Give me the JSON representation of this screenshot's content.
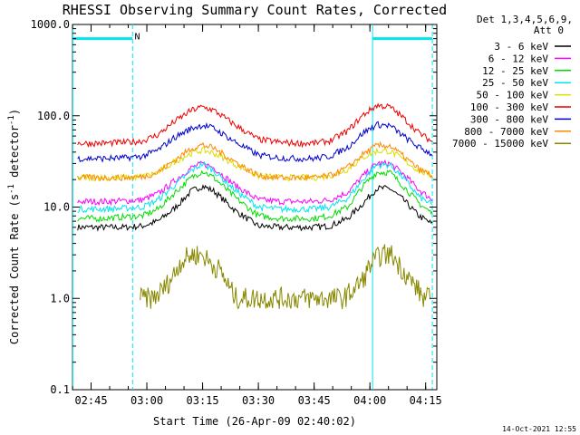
{
  "chart_data": {
    "type": "line",
    "title": "RHESSI Observing Summary Count Rates, Corrected",
    "xlabel": "Start Time (26-Apr-09 02:40:02)",
    "ylabel_parts": [
      "Corrected Count Rate (s",
      "-1",
      " detector",
      "-1",
      ")"
    ],
    "yscale": "log",
    "ylim": [
      0.1,
      1000
    ],
    "xlim": [
      2.6667,
      4.3
    ],
    "x_unit": "hours UT",
    "x_ticks": [
      {
        "label": "02:45",
        "value": 2.75
      },
      {
        "label": "03:00",
        "value": 3.0
      },
      {
        "label": "03:15",
        "value": 3.25
      },
      {
        "label": "03:30",
        "value": 3.5
      },
      {
        "label": "03:45",
        "value": 3.75
      },
      {
        "label": "04:00",
        "value": 4.0
      },
      {
        "label": "04:15",
        "value": 4.25
      }
    ],
    "y_ticks": [
      {
        "label": "0.1",
        "value": 0.1
      },
      {
        "label": "1.0",
        "value": 1
      },
      {
        "label": "10.0",
        "value": 10
      },
      {
        "label": "100.0",
        "value": 100
      },
      {
        "label": "1000.0",
        "value": 1000
      }
    ],
    "legend_header": [
      "Det 1,3,4,5,6,9,",
      "Att 0"
    ],
    "legend_position": "right, outside plot",
    "series": [
      {
        "name": "3 - 6 keV",
        "color": "#000000",
        "x": [
          2.69,
          2.8,
          2.9,
          2.98,
          3.05,
          3.12,
          3.2,
          3.25,
          3.3,
          3.4,
          3.5,
          3.6,
          3.68,
          3.75,
          3.82,
          3.9,
          3.97,
          4.03,
          4.09,
          4.15,
          4.22,
          4.28
        ],
        "y": [
          6,
          6,
          6,
          6.2,
          7,
          9.5,
          15,
          17,
          15,
          9,
          6.2,
          6,
          6,
          6,
          6.2,
          7.5,
          11,
          16,
          16,
          12,
          8,
          6.5
        ]
      },
      {
        "name": "6 - 12 keV",
        "color": "#ff00ff",
        "x": [
          2.69,
          2.8,
          2.9,
          2.98,
          3.05,
          3.12,
          3.2,
          3.25,
          3.3,
          3.4,
          3.5,
          3.6,
          3.68,
          3.75,
          3.82,
          3.9,
          3.97,
          4.03,
          4.09,
          4.15,
          4.22,
          4.28
        ],
        "y": [
          11.5,
          11.5,
          11.7,
          12,
          14,
          19,
          27,
          30,
          27,
          17,
          12,
          11.5,
          11.5,
          11.5,
          12,
          14.5,
          22,
          30,
          30,
          23,
          15.5,
          12
        ]
      },
      {
        "name": "12 - 25 keV",
        "color": "#00dd00",
        "x": [
          2.69,
          2.8,
          2.9,
          2.98,
          3.05,
          3.12,
          3.2,
          3.25,
          3.3,
          3.4,
          3.5,
          3.6,
          3.68,
          3.75,
          3.82,
          3.9,
          3.97,
          4.03,
          4.09,
          4.15,
          4.22,
          4.28
        ],
        "y": [
          7.5,
          7.5,
          7.8,
          8,
          9.5,
          14,
          21,
          25,
          21,
          12.5,
          8,
          7.5,
          7.5,
          7.5,
          8,
          10,
          17,
          24,
          24,
          17,
          11,
          8.5
        ]
      },
      {
        "name": "25 - 50 keV",
        "color": "#00e5ee",
        "x": [
          2.69,
          2.8,
          2.9,
          2.98,
          3.05,
          3.12,
          3.2,
          3.25,
          3.3,
          3.4,
          3.5,
          3.6,
          3.68,
          3.75,
          3.82,
          3.9,
          3.97,
          4.03,
          4.09,
          4.15,
          4.22,
          4.28
        ],
        "y": [
          9.5,
          9.5,
          9.7,
          10,
          12,
          17,
          25,
          30,
          25,
          15,
          10,
          9.5,
          9.5,
          9.5,
          10,
          12.5,
          20,
          29,
          29,
          21,
          13,
          10.5
        ]
      },
      {
        "name": "50 - 100 keV",
        "color": "#dddd00",
        "x": [
          2.69,
          2.8,
          2.9,
          2.98,
          3.05,
          3.12,
          3.2,
          3.25,
          3.3,
          3.4,
          3.5,
          3.6,
          3.68,
          3.75,
          3.82,
          3.9,
          3.97,
          4.03,
          4.09,
          4.15,
          4.22,
          4.28
        ],
        "y": [
          21,
          21,
          21,
          21.5,
          24,
          31,
          39,
          42,
          39,
          29,
          22,
          21,
          21,
          21,
          22,
          26,
          35,
          41,
          41,
          33,
          25,
          22
        ]
      },
      {
        "name": "100 - 300 keV",
        "color": "#ee0000",
        "x": [
          2.69,
          2.8,
          2.9,
          2.98,
          3.05,
          3.12,
          3.2,
          3.25,
          3.3,
          3.4,
          3.5,
          3.6,
          3.68,
          3.75,
          3.82,
          3.9,
          3.97,
          4.03,
          4.09,
          4.15,
          4.22,
          4.28
        ],
        "y": [
          50,
          50,
          51,
          53,
          62,
          85,
          115,
          125,
          115,
          78,
          55,
          51,
          50,
          50,
          53,
          68,
          102,
          130,
          125,
          95,
          65,
          52
        ]
      },
      {
        "name": "300 - 800 keV",
        "color": "#0000cc",
        "x": [
          2.69,
          2.8,
          2.9,
          2.98,
          3.05,
          3.12,
          3.2,
          3.25,
          3.3,
          3.4,
          3.5,
          3.6,
          3.68,
          3.75,
          3.82,
          3.9,
          3.97,
          4.03,
          4.09,
          4.15,
          4.22,
          4.28
        ],
        "y": [
          34,
          34,
          34.5,
          36,
          42,
          57,
          73,
          79,
          73,
          51,
          37,
          34.5,
          34,
          34,
          36,
          45,
          65,
          80,
          78,
          60,
          45,
          38
        ]
      },
      {
        "name": "800 - 7000 keV",
        "color": "#ff8800",
        "x": [
          2.69,
          2.8,
          2.9,
          2.98,
          3.05,
          3.12,
          3.2,
          3.25,
          3.3,
          3.4,
          3.5,
          3.6,
          3.68,
          3.75,
          3.82,
          3.9,
          3.97,
          4.03,
          4.09,
          4.15,
          4.22,
          4.28
        ],
        "y": [
          21,
          21,
          21,
          21.5,
          24,
          32,
          44,
          48,
          44,
          31,
          22,
          21,
          21,
          21,
          22,
          27,
          38,
          47,
          47,
          36,
          26,
          22
        ]
      },
      {
        "name": "7000 - 15000 keV",
        "color": "#888800",
        "x": [
          2.97,
          3.03,
          3.08,
          3.12,
          3.15,
          3.2,
          3.25,
          3.28,
          3.33,
          3.37,
          3.4,
          3.84,
          3.88,
          3.92,
          3.97,
          4.0,
          4.05,
          4.1,
          4.12,
          4.15,
          4.18,
          4.22,
          4.24,
          4.27
        ],
        "y": [
          1.0,
          1.0,
          1.3,
          1.8,
          2.5,
          3.0,
          3.0,
          2.5,
          2.0,
          1.3,
          1.0,
          1.0,
          1.0,
          1.2,
          1.6,
          2.3,
          3.0,
          3.0,
          2.5,
          2.0,
          1.6,
          1.2,
          1.0,
          1.0
        ]
      }
    ],
    "annotations": [
      {
        "type": "vline",
        "x": 2.668,
        "color": "#00e5ee",
        "style": "solid"
      },
      {
        "type": "vline",
        "x": 2.936,
        "color": "#00e5ee",
        "style": "dashed"
      },
      {
        "type": "vline",
        "x": 4.012,
        "color": "#00e5ee",
        "style": "solid"
      },
      {
        "type": "vline",
        "x": 4.28,
        "color": "#00e5ee",
        "style": "dashed"
      },
      {
        "type": "bar",
        "x0": 2.668,
        "x1": 2.936,
        "y": 700,
        "color": "#00e5ee"
      },
      {
        "type": "bar",
        "x0": 4.012,
        "x1": 4.28,
        "y": 700,
        "color": "#00e5ee"
      },
      {
        "type": "label",
        "text": "N",
        "x": 2.945,
        "y": 750,
        "color": "#00e5ee"
      }
    ],
    "grid": false
  },
  "footer": {
    "timestamp": "14-Oct-2021 12:55"
  }
}
